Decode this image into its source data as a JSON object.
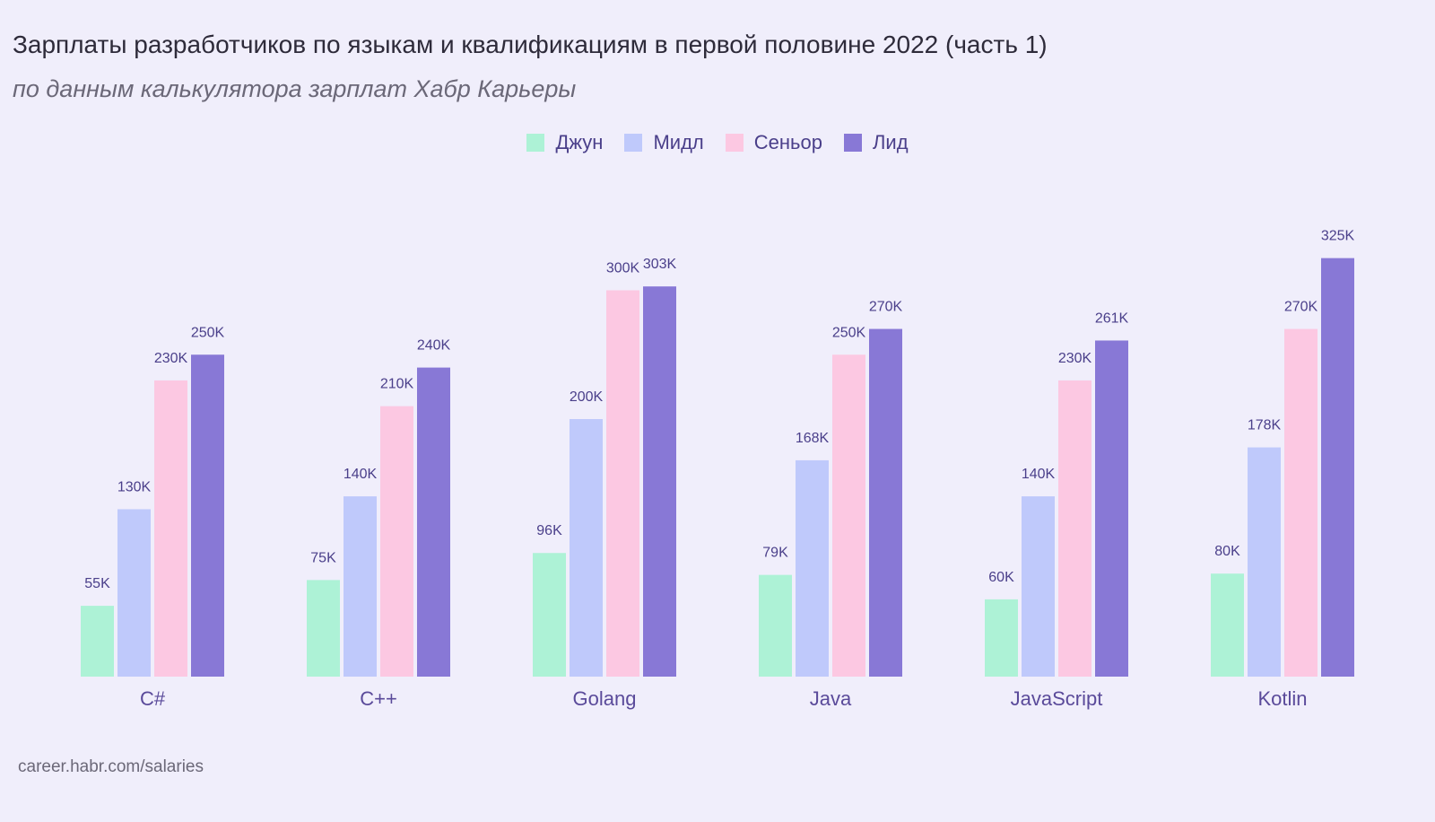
{
  "title": "Зарплаты разработчиков по языкам и квалификациям в первой половине 2022 (часть 1)",
  "subtitle": "по данным калькулятора зарплат Хабр Карьеры",
  "source": "career.habr.com/salaries",
  "colors": {
    "background": "#f0eefb",
    "label_text": "#4a3f8a",
    "category_text": "#5a4a9a"
  },
  "chart_data": {
    "type": "bar",
    "categories": [
      "C#",
      "C++",
      "Golang",
      "Java",
      "JavaScript",
      "Kotlin"
    ],
    "series": [
      {
        "name": "Джун",
        "color": "#adf2d6",
        "values": [
          55,
          75,
          96,
          79,
          60,
          80
        ],
        "labels": [
          "55K",
          "75K",
          "96K",
          "79K",
          "60K",
          "80K"
        ]
      },
      {
        "name": "Мидл",
        "color": "#bfc9fb",
        "values": [
          130,
          140,
          200,
          168,
          140,
          178
        ],
        "labels": [
          "130K",
          "140K",
          "200K",
          "168K",
          "140K",
          "178K"
        ]
      },
      {
        "name": "Сеньор",
        "color": "#fcc8e2",
        "values": [
          230,
          210,
          300,
          250,
          230,
          270
        ],
        "labels": [
          "230K",
          "210K",
          "300K",
          "250K",
          "230K",
          "270K"
        ]
      },
      {
        "name": "Лид",
        "color": "#8878d6",
        "values": [
          250,
          240,
          303,
          270,
          261,
          325
        ],
        "labels": [
          "250K",
          "240K",
          "303K",
          "270K",
          "261K",
          "325K"
        ]
      }
    ],
    "legend_position": "top-center",
    "grid": false
  }
}
